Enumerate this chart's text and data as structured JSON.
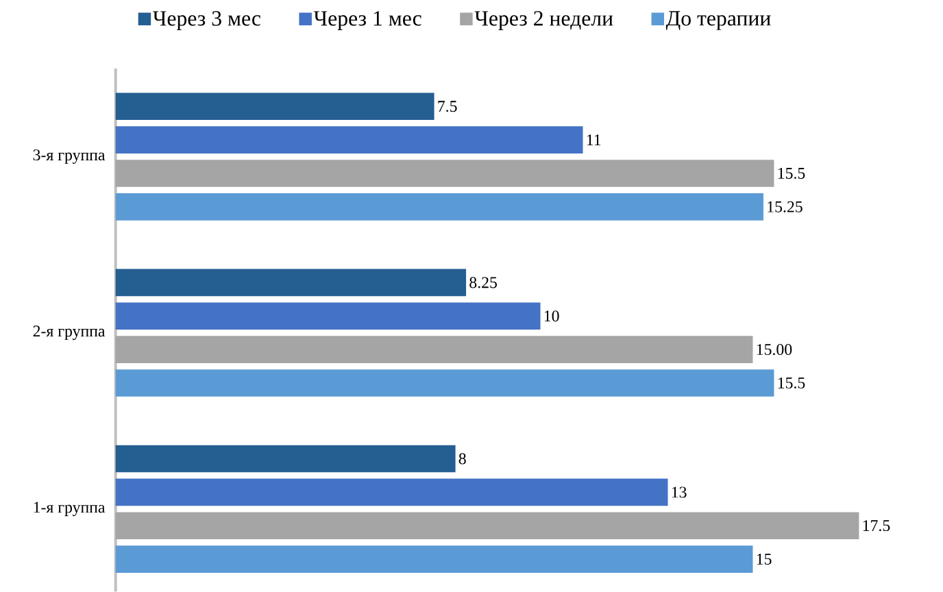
{
  "chart_data": {
    "type": "bar",
    "orientation": "horizontal",
    "categories": [
      "3-я группа",
      "2-я группа",
      "1-я группа"
    ],
    "series": [
      {
        "name": "Через 3 мес",
        "color": "#255e91",
        "values": [
          7.5,
          8.25,
          8
        ]
      },
      {
        "name": "Через 1 мес",
        "color": "#4472c4",
        "values": [
          11,
          10,
          13
        ]
      },
      {
        "name": "Через 2 недели",
        "color": "#a5a5a5",
        "values": [
          15.5,
          15,
          17.5
        ],
        "value_labels": [
          "15.5",
          "15.00",
          "17.5"
        ]
      },
      {
        "name": "До терапии",
        "color": "#5b9bd5",
        "values": [
          15.25,
          15.5,
          15
        ]
      }
    ],
    "data_labels": true,
    "tick_labels": "y",
    "grid": false,
    "legend": "top"
  }
}
